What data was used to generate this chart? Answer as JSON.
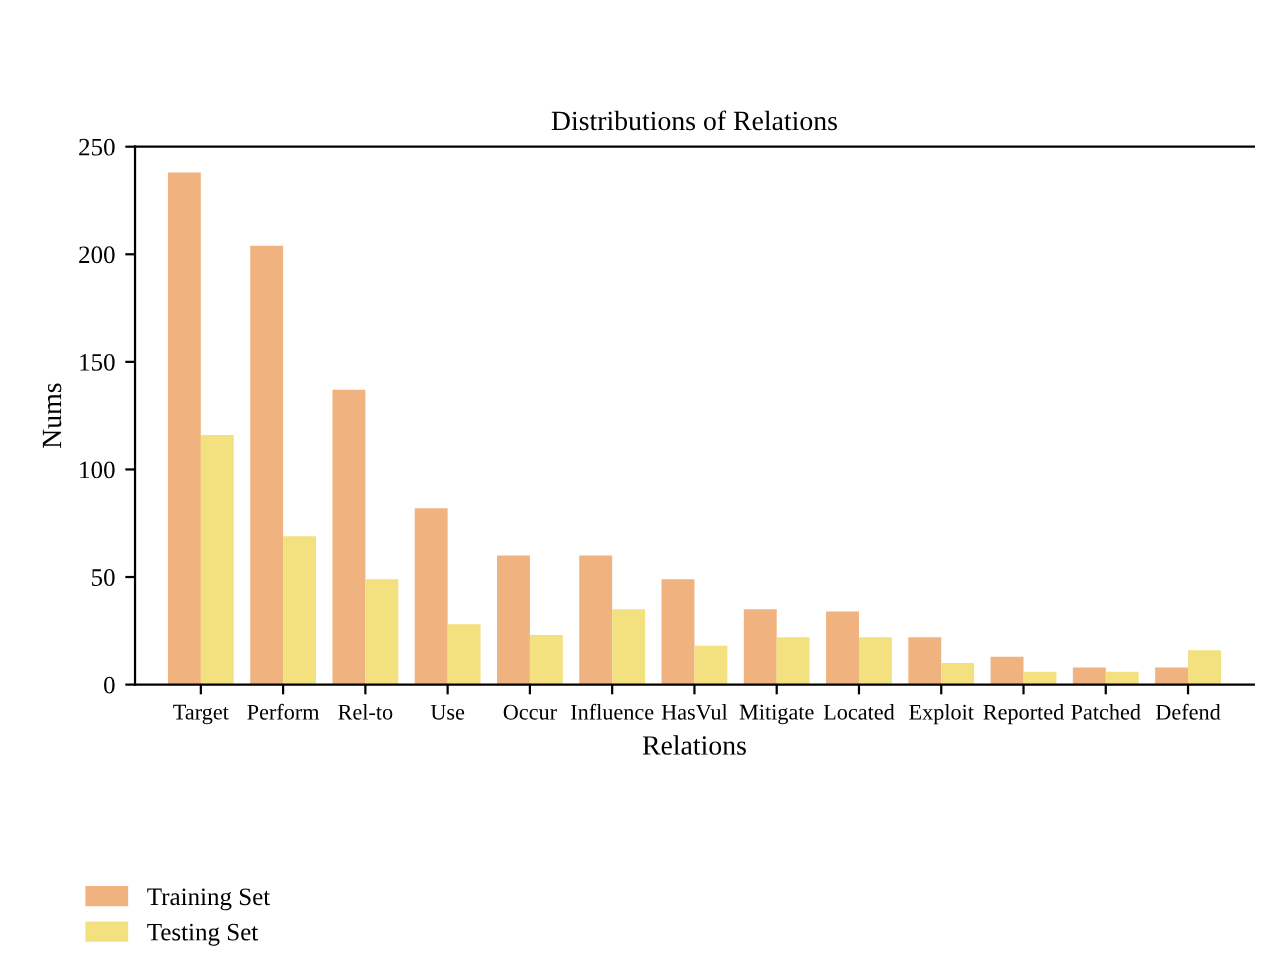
{
  "chart_data": {
    "type": "bar",
    "title": "Distributions of Relations",
    "xlabel": "Relations",
    "ylabel": "Nums",
    "categories": [
      "Target",
      "Perform",
      "Rel-to",
      "Use",
      "Occur",
      "Influence",
      "HasVul",
      "Mitigate",
      "Located",
      "Exploit",
      "Reported",
      "Patched",
      "Defend"
    ],
    "series": [
      {
        "name": "Training Set",
        "color": "#f0b27e",
        "values": [
          238,
          204,
          137,
          82,
          60,
          60,
          49,
          35,
          34,
          22,
          13,
          8,
          8
        ]
      },
      {
        "name": "Testing Set",
        "color": "#f3e07f",
        "values": [
          116,
          69,
          49,
          28,
          23,
          35,
          18,
          22,
          22,
          10,
          6,
          6,
          16
        ]
      }
    ],
    "ylim": [
      0,
      250
    ],
    "yticks": [
      0,
      50,
      100,
      150,
      200,
      250
    ],
    "grid": false,
    "legend": "bottom left"
  }
}
